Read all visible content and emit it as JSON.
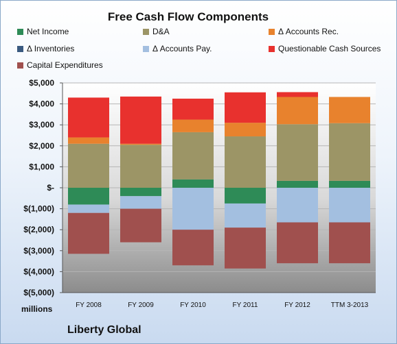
{
  "chart_data": {
    "type": "bar",
    "stacked": true,
    "title": "Free Cash Flow Components",
    "categories": [
      "FY 2008",
      "FY 2009",
      "FY 2010",
      "FY 2011",
      "FY 2012",
      "TTM 3-2013"
    ],
    "units_label": "millions",
    "company": "Liberty Global",
    "ylim": [
      -5000,
      5000
    ],
    "y_ticks": [
      5000,
      4000,
      3000,
      2000,
      1000,
      0,
      -1000,
      -2000,
      -3000,
      -4000,
      -5000
    ],
    "y_tick_labels": [
      "$5,000",
      "$4,000",
      "$3,000",
      "$2,000",
      "$1,000",
      "$-",
      "$(1,000)",
      "$(2,000)",
      "$(3,000)",
      "$(4,000)",
      "$(5,000)"
    ],
    "legend_placement": "top",
    "grid": true,
    "series": [
      {
        "name": "Net Income",
        "color": "#2e8b57",
        "values": [
          -800,
          -400,
          400,
          -750,
          330,
          330
        ]
      },
      {
        "name": "D&A",
        "color": "#9c9566",
        "values": [
          2100,
          2050,
          2250,
          2450,
          2700,
          2750
        ]
      },
      {
        "name": "Δ Accounts Rec.",
        "color": "#e8822d",
        "values": [
          300,
          50,
          600,
          650,
          1300,
          1250
        ]
      },
      {
        "name": "Δ Inventories",
        "color": "#3a5a80",
        "values": [
          0,
          0,
          0,
          0,
          0,
          0
        ]
      },
      {
        "name": "Δ Accounts Pay.",
        "color": "#a3bfe0",
        "values": [
          -400,
          -600,
          -2000,
          -1150,
          -1650,
          -1650
        ]
      },
      {
        "name": "Questionable Cash Sources",
        "color": "#e8312e",
        "values": [
          1900,
          2250,
          1000,
          1450,
          230,
          0
        ]
      },
      {
        "name": "Capital Expenditures",
        "color": "#a0504e",
        "values": [
          -1950,
          -1600,
          -1700,
          -1950,
          -1950,
          -1950
        ]
      }
    ]
  }
}
